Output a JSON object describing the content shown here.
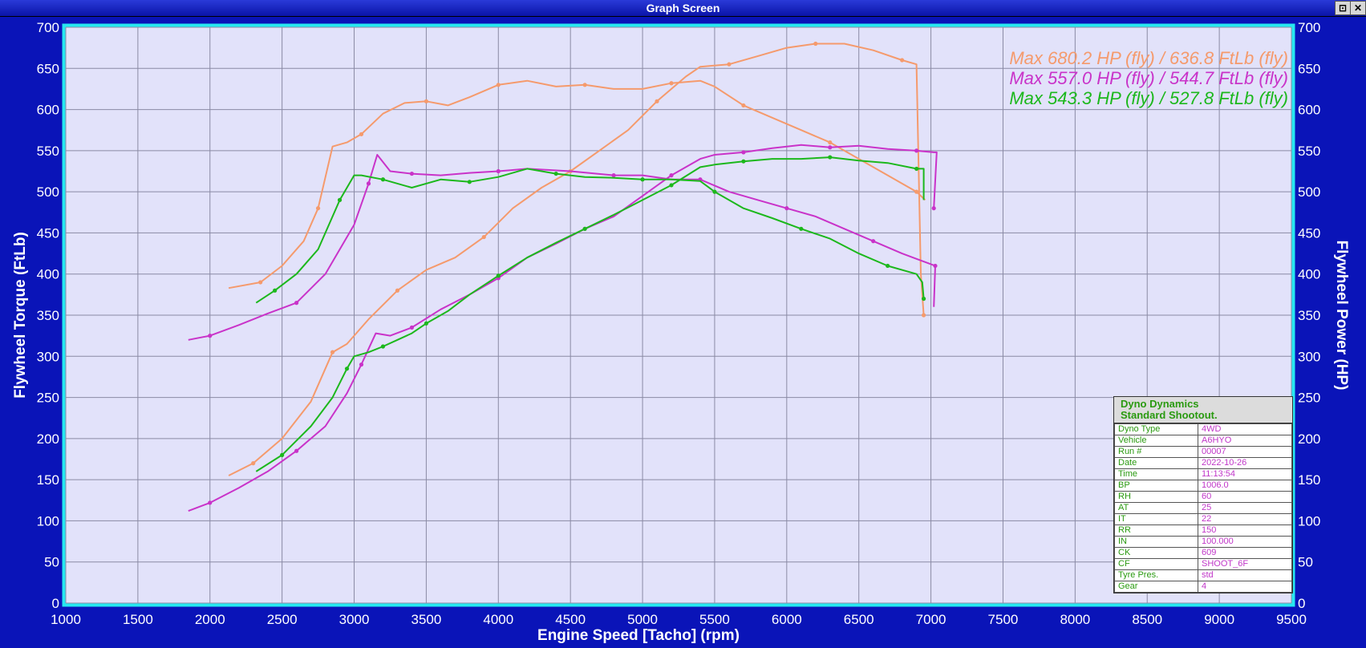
{
  "window": {
    "title": "Graph Screen",
    "btn_restore": "⊡",
    "btn_close": "✕"
  },
  "colors": {
    "orange": "#f59a6c",
    "magenta": "#c933c9",
    "green": "#1cb81c",
    "plot_bg": "#e2e2fa",
    "frame": "#27e8f0"
  },
  "chart_data": {
    "type": "line",
    "xlabel": "Engine Speed [Tacho] (rpm)",
    "ylabel_left": "Flywheel Torque (FtLb)",
    "ylabel_right": "Flywheel Power (HP)",
    "xlim": [
      1000,
      9500
    ],
    "ylim": [
      0,
      700
    ],
    "xticks": [
      1000,
      1500,
      2000,
      2500,
      3000,
      3500,
      4000,
      4500,
      5000,
      5500,
      6000,
      6500,
      7000,
      7500,
      8000,
      8500,
      9000,
      9500
    ],
    "yticks": [
      0,
      50,
      100,
      150,
      200,
      250,
      300,
      350,
      400,
      450,
      500,
      550,
      600,
      650,
      700
    ],
    "grid": true,
    "legend": [
      {
        "text": "Max 680.2 HP (fly) / 636.8 FtLb (fly)",
        "color": "#f59a6c"
      },
      {
        "text": "Max 557.0 HP (fly) / 544.7 FtLb (fly)",
        "color": "#c933c9"
      },
      {
        "text": "Max 543.3 HP (fly) / 527.8 FtLb (fly)",
        "color": "#1cb81c"
      }
    ],
    "series": [
      {
        "color": "#f59a6c",
        "metric": "torque",
        "x": [
          2130,
          2350,
          2500,
          2650,
          2750,
          2850,
          2950,
          3050,
          3200,
          3350,
          3500,
          3650,
          3800,
          4000,
          4200,
          4400,
          4600,
          4800,
          5000,
          5200,
          5400,
          5500,
          5700,
          5900,
          6100,
          6300,
          6500,
          6700,
          6900,
          6960
        ],
        "y": [
          383,
          390,
          410,
          440,
          480,
          555,
          560,
          570,
          595,
          608,
          610,
          605,
          615,
          630,
          635,
          628,
          630,
          625,
          625,
          632,
          635,
          628,
          605,
          590,
          575,
          560,
          540,
          520,
          500,
          490
        ]
      },
      {
        "color": "#f59a6c",
        "metric": "power",
        "x": [
          2130,
          2300,
          2500,
          2700,
          2850,
          2950,
          3100,
          3300,
          3500,
          3700,
          3900,
          4100,
          4300,
          4500,
          4700,
          4900,
          5100,
          5300,
          5400,
          5600,
          5800,
          6000,
          6200,
          6400,
          6600,
          6800,
          6900,
          6930,
          6950
        ],
        "y": [
          155,
          170,
          200,
          245,
          305,
          315,
          345,
          380,
          405,
          420,
          445,
          480,
          505,
          525,
          550,
          575,
          610,
          640,
          652,
          655,
          665,
          675,
          680,
          680,
          672,
          660,
          655,
          400,
          350
        ]
      },
      {
        "color": "#c933c9",
        "metric": "torque",
        "x": [
          1850,
          2000,
          2200,
          2400,
          2600,
          2800,
          3000,
          3100,
          3160,
          3250,
          3400,
          3600,
          3800,
          4000,
          4200,
          4500,
          4800,
          5000,
          5200,
          5400,
          5600,
          5800,
          6000,
          6200,
          6400,
          6600,
          6800,
          7000,
          7030,
          7020
        ],
        "y": [
          320,
          325,
          338,
          352,
          365,
          400,
          460,
          510,
          545,
          525,
          522,
          520,
          523,
          525,
          528,
          525,
          520,
          520,
          515,
          515,
          500,
          490,
          480,
          470,
          455,
          440,
          425,
          412,
          410,
          360
        ]
      },
      {
        "color": "#c933c9",
        "metric": "power",
        "x": [
          1850,
          2000,
          2200,
          2400,
          2600,
          2800,
          2950,
          3050,
          3150,
          3250,
          3400,
          3600,
          3800,
          4000,
          4200,
          4400,
          4600,
          4800,
          5000,
          5200,
          5400,
          5500,
          5700,
          5900,
          6100,
          6300,
          6500,
          6700,
          6900,
          7020,
          7040,
          7020
        ],
        "y": [
          112,
          122,
          140,
          160,
          185,
          215,
          255,
          290,
          328,
          325,
          335,
          357,
          375,
          395,
          420,
          437,
          455,
          470,
          495,
          520,
          540,
          545,
          548,
          553,
          557,
          554,
          556,
          552,
          550,
          548,
          548,
          480
        ]
      },
      {
        "color": "#1cb81c",
        "metric": "torque",
        "x": [
          2320,
          2450,
          2600,
          2750,
          2900,
          3000,
          3050,
          3200,
          3400,
          3600,
          3800,
          4000,
          4200,
          4400,
          4600,
          4800,
          5000,
          5200,
          5400,
          5500,
          5700,
          5900,
          6100,
          6300,
          6500,
          6700,
          6900,
          6940,
          6950
        ],
        "y": [
          365,
          380,
          400,
          430,
          490,
          520,
          520,
          515,
          505,
          515,
          512,
          518,
          528,
          522,
          518,
          517,
          515,
          515,
          513,
          500,
          480,
          468,
          455,
          443,
          425,
          410,
          400,
          390,
          370
        ]
      },
      {
        "color": "#1cb81c",
        "metric": "power",
        "x": [
          2320,
          2500,
          2700,
          2850,
          2950,
          3000,
          3100,
          3200,
          3300,
          3400,
          3500,
          3650,
          3800,
          4000,
          4200,
          4400,
          4600,
          4800,
          5000,
          5200,
          5400,
          5500,
          5700,
          5900,
          6100,
          6300,
          6500,
          6700,
          6900,
          6950,
          6950
        ],
        "y": [
          160,
          180,
          215,
          250,
          285,
          300,
          305,
          312,
          320,
          328,
          340,
          355,
          375,
          398,
          420,
          438,
          455,
          472,
          490,
          508,
          530,
          533,
          537,
          540,
          540,
          542,
          538,
          535,
          528,
          528,
          490
        ]
      }
    ]
  },
  "info_box": {
    "title_line1": "Dyno Dynamics",
    "title_line2": "Standard Shootout.",
    "rows": [
      {
        "k": "Dyno Type",
        "v": "4WD"
      },
      {
        "k": "Vehicle",
        "v": "A6HYO"
      },
      {
        "k": "Run #",
        "v": "00007"
      },
      {
        "k": "Date",
        "v": "2022-10-26"
      },
      {
        "k": "Time",
        "v": "11:13:54"
      },
      {
        "k": "BP",
        "v": "1006.0"
      },
      {
        "k": "RH",
        "v": "60"
      },
      {
        "k": "AT",
        "v": "25"
      },
      {
        "k": "IT",
        "v": "22"
      },
      {
        "k": "RR",
        "v": "150"
      },
      {
        "k": "IN",
        "v": "100.000"
      },
      {
        "k": "CK",
        "v": "609"
      },
      {
        "k": "CF",
        "v": "SHOOT_6F"
      },
      {
        "k": "Tyre Pres.",
        "v": "std"
      },
      {
        "k": "Gear",
        "v": "4"
      }
    ]
  }
}
